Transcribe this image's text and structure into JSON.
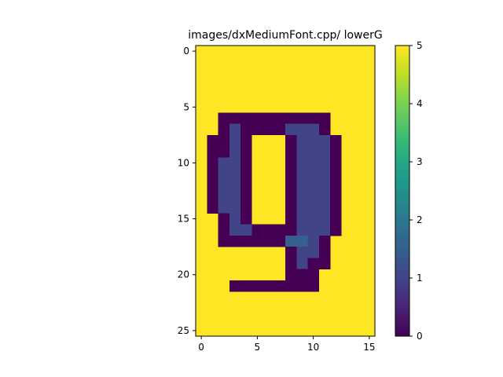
{
  "chart_data": {
    "type": "heatmap",
    "title": "images/dxMediumFont.cpp/ lowerG",
    "xlabel": "",
    "ylabel": "",
    "xlim": [
      -0.5,
      15.5
    ],
    "ylim": [
      25.5,
      -0.5
    ],
    "x_ticks": [
      0,
      5,
      10,
      15
    ],
    "y_ticks": [
      0,
      5,
      10,
      15,
      20,
      25
    ],
    "colorbar": {
      "min": 0,
      "max": 5,
      "ticks": [
        0,
        1,
        2,
        3,
        4,
        5
      ],
      "colormap": "viridis"
    },
    "grid": false,
    "default_value": 5,
    "cells": [
      {
        "row": 6,
        "start": 2,
        "values": [
          0,
          0,
          0,
          0,
          0,
          0,
          0,
          0,
          0,
          0
        ]
      },
      {
        "row": 7,
        "start": 2,
        "values": [
          0,
          1,
          0,
          0,
          0,
          0,
          1,
          1,
          1,
          0
        ]
      },
      {
        "row": 8,
        "start": 1,
        "values": [
          0,
          0,
          1,
          0,
          5,
          5,
          5,
          0,
          1,
          1,
          1,
          0
        ]
      },
      {
        "row": 9,
        "start": 1,
        "values": [
          0,
          0,
          1,
          0,
          5,
          5,
          5,
          0,
          1,
          1,
          1,
          0
        ]
      },
      {
        "row": 10,
        "start": 1,
        "values": [
          0,
          1,
          1,
          0,
          5,
          5,
          5,
          0,
          1,
          1,
          1,
          0
        ]
      },
      {
        "row": 11,
        "start": 1,
        "values": [
          0,
          1,
          1,
          0,
          5,
          5,
          5,
          0,
          1,
          1,
          1,
          0
        ]
      },
      {
        "row": 12,
        "start": 1,
        "values": [
          0,
          1,
          1,
          0,
          5,
          5,
          5,
          0,
          1,
          1,
          1,
          0
        ]
      },
      {
        "row": 13,
        "start": 1,
        "values": [
          0,
          1,
          1,
          0,
          5,
          5,
          5,
          0,
          1,
          1,
          1,
          0
        ]
      },
      {
        "row": 14,
        "start": 1,
        "values": [
          0,
          1,
          1,
          0,
          5,
          5,
          5,
          0,
          1,
          1,
          1,
          0
        ]
      },
      {
        "row": 15,
        "start": 2,
        "values": [
          0,
          1,
          0,
          5,
          5,
          5,
          0,
          1,
          1,
          1,
          0
        ]
      },
      {
        "row": 16,
        "start": 2,
        "values": [
          0,
          1,
          1,
          0,
          0,
          0,
          0,
          1,
          1,
          1,
          0
        ]
      },
      {
        "row": 17,
        "start": 2,
        "values": [
          0,
          0,
          0,
          0,
          0,
          0,
          1.5,
          1.5,
          1,
          0
        ]
      },
      {
        "row": 18,
        "start": 8,
        "values": [
          0,
          1,
          1,
          0
        ]
      },
      {
        "row": 19,
        "start": 8,
        "values": [
          0,
          1,
          0,
          0
        ]
      },
      {
        "row": 20,
        "start": 8,
        "values": [
          0,
          0,
          0
        ]
      },
      {
        "row": 21,
        "start": 3,
        "values": [
          0,
          0,
          0,
          0,
          0,
          0,
          0,
          0
        ]
      }
    ]
  }
}
